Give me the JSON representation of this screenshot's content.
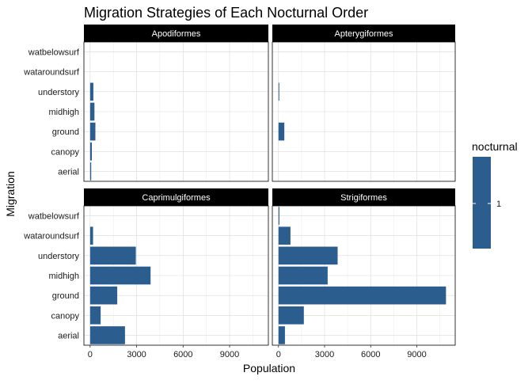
{
  "chart_data": {
    "type": "bar",
    "orientation": "horizontal",
    "title": "Migration Strategies of Each Nocturnal Order",
    "xlabel": "Population",
    "ylabel": "Migration",
    "categories": [
      "aerial",
      "canopy",
      "ground",
      "midhigh",
      "understory",
      "wataroundsurf",
      "watbelowsurf"
    ],
    "xlim": [
      -400,
      11500
    ],
    "x_ticks": [
      "0",
      "3000",
      "6000",
      "9000"
    ],
    "x_tick_values": [
      0,
      3000,
      6000,
      9000
    ],
    "grid": true,
    "legend": {
      "title": "nocturnal",
      "entries": [
        "1"
      ],
      "placement": "right"
    },
    "colors": {
      "bar": "#2c5d8f",
      "strip": "#000000",
      "strip_text": "#ffffff",
      "grid": "#d9d9d9"
    },
    "facets": [
      {
        "name": "Apodiformes",
        "values": [
          70,
          110,
          340,
          280,
          210,
          0,
          0
        ]
      },
      {
        "name": "Apterygiformes",
        "values": [
          0,
          0,
          380,
          0,
          40,
          0,
          0
        ]
      },
      {
        "name": "Caprimulgiformes",
        "values": [
          2250,
          680,
          1750,
          3900,
          2950,
          190,
          0
        ]
      },
      {
        "name": "Strigiformes",
        "values": [
          420,
          1650,
          10900,
          3200,
          3850,
          780,
          60
        ]
      }
    ]
  }
}
